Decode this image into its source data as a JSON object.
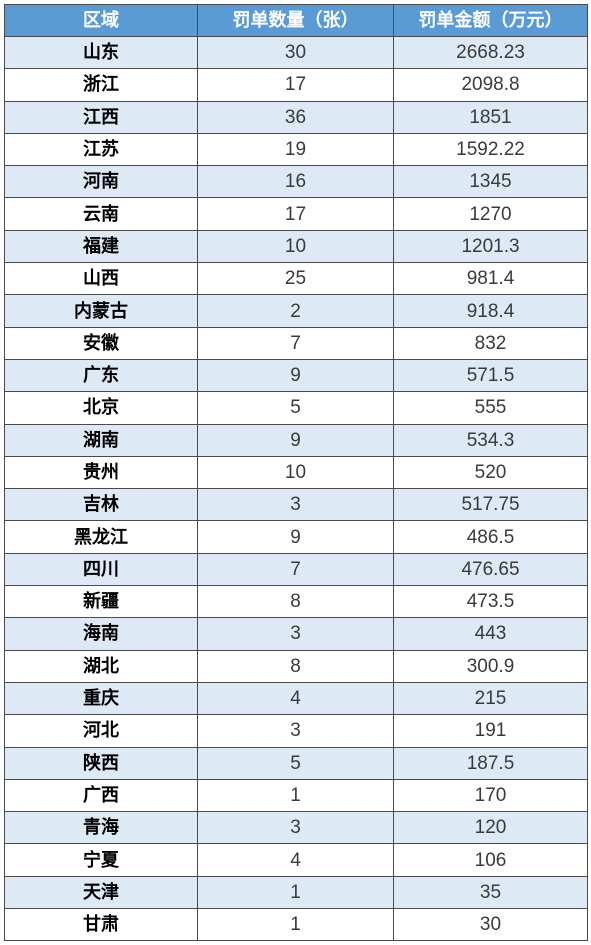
{
  "table": {
    "headers": [
      "区域",
      "罚单数量（张）",
      "罚单金额（万元）"
    ],
    "rows": [
      [
        "山东",
        "30",
        "2668.23"
      ],
      [
        "浙江",
        "17",
        "2098.8"
      ],
      [
        "江西",
        "36",
        "1851"
      ],
      [
        "江苏",
        "19",
        "1592.22"
      ],
      [
        "河南",
        "16",
        "1345"
      ],
      [
        "云南",
        "17",
        "1270"
      ],
      [
        "福建",
        "10",
        "1201.3"
      ],
      [
        "山西",
        "25",
        "981.4"
      ],
      [
        "内蒙古",
        "2",
        "918.4"
      ],
      [
        "安徽",
        "7",
        "832"
      ],
      [
        "广东",
        "9",
        "571.5"
      ],
      [
        "北京",
        "5",
        "555"
      ],
      [
        "湖南",
        "9",
        "534.3"
      ],
      [
        "贵州",
        "10",
        "520"
      ],
      [
        "吉林",
        "3",
        "517.75"
      ],
      [
        "黑龙江",
        "9",
        "486.5"
      ],
      [
        "四川",
        "7",
        "476.65"
      ],
      [
        "新疆",
        "8",
        "473.5"
      ],
      [
        "海南",
        "3",
        "443"
      ],
      [
        "湖北",
        "8",
        "300.9"
      ],
      [
        "重庆",
        "4",
        "215"
      ],
      [
        "河北",
        "3",
        "191"
      ],
      [
        "陕西",
        "5",
        "187.5"
      ],
      [
        "广西",
        "1",
        "170"
      ],
      [
        "青海",
        "3",
        "120"
      ],
      [
        "宁夏",
        "4",
        "106"
      ],
      [
        "天津",
        "1",
        "35"
      ],
      [
        "甘肃",
        "1",
        "30"
      ]
    ]
  },
  "colors": {
    "header_bg": "#5b9bd5",
    "header_text": "#ffffff",
    "stripe_bg": "#dde9f5",
    "row_bg": "#ffffff",
    "border": "#4a4a4a"
  }
}
